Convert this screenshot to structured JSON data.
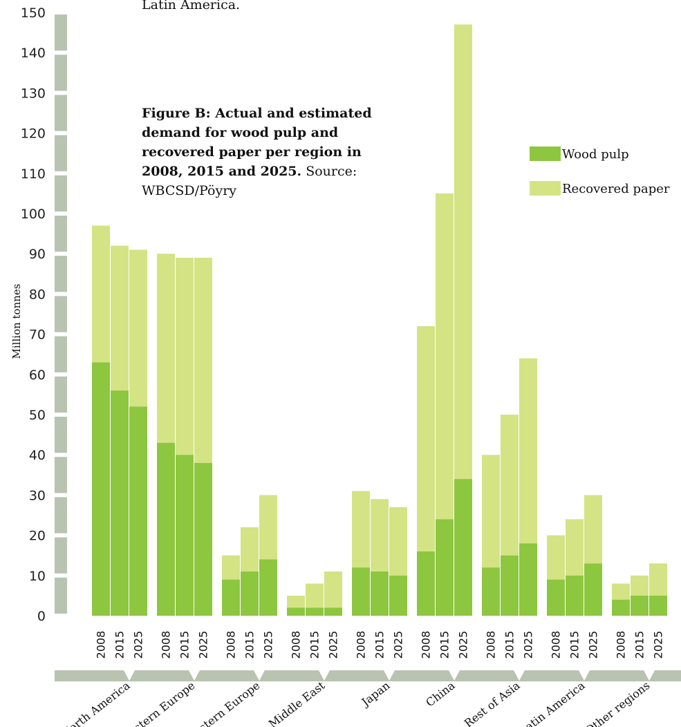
{
  "top_text": "Latin America.",
  "caption": {
    "bold": "Figure B: Actual and estimated demand for wood pulp and recovered paper per region in 2008, 2015 and 2025.",
    "normal": "Source: WBCSD/Pöyry"
  },
  "colors": {
    "wood_pulp": "#8dc63f",
    "recovered_paper": "#d4e384",
    "axis": "#b8c3b0"
  },
  "chart_data": {
    "type": "bar",
    "stacked": true,
    "title": "",
    "ylabel": "Million tonnes",
    "ylim": [
      0,
      150
    ],
    "y_ticks": [
      "0",
      "10",
      "20",
      "30",
      "40",
      "50",
      "60",
      "70",
      "80",
      "90",
      "100",
      "110",
      "120",
      "130",
      "140",
      "150"
    ],
    "years": [
      "2008",
      "2015",
      "2025"
    ],
    "regions": [
      "North America",
      "Western Europe",
      "Eastern Europe",
      "Middle East",
      "Japan",
      "China",
      "Rest of Asia",
      "Latin America",
      "Other regions"
    ],
    "legend": {
      "position": "top-right",
      "entries": [
        "Wood pulp",
        "Recovered paper"
      ]
    },
    "series": [
      {
        "name": "Wood pulp",
        "values": [
          [
            63,
            56,
            52
          ],
          [
            43,
            40,
            38
          ],
          [
            9,
            11,
            14
          ],
          [
            2,
            2,
            2
          ],
          [
            12,
            11,
            10
          ],
          [
            16,
            24,
            34
          ],
          [
            12,
            15,
            18
          ],
          [
            9,
            10,
            13
          ],
          [
            4,
            5,
            5
          ]
        ]
      },
      {
        "name": "Recovered paper",
        "values": [
          [
            34,
            36,
            39
          ],
          [
            47,
            49,
            51
          ],
          [
            6,
            11,
            16
          ],
          [
            3,
            6,
            9
          ],
          [
            19,
            18,
            17
          ],
          [
            56,
            81,
            113
          ],
          [
            28,
            35,
            46
          ],
          [
            11,
            14,
            17
          ],
          [
            4,
            5,
            8
          ]
        ]
      }
    ]
  }
}
